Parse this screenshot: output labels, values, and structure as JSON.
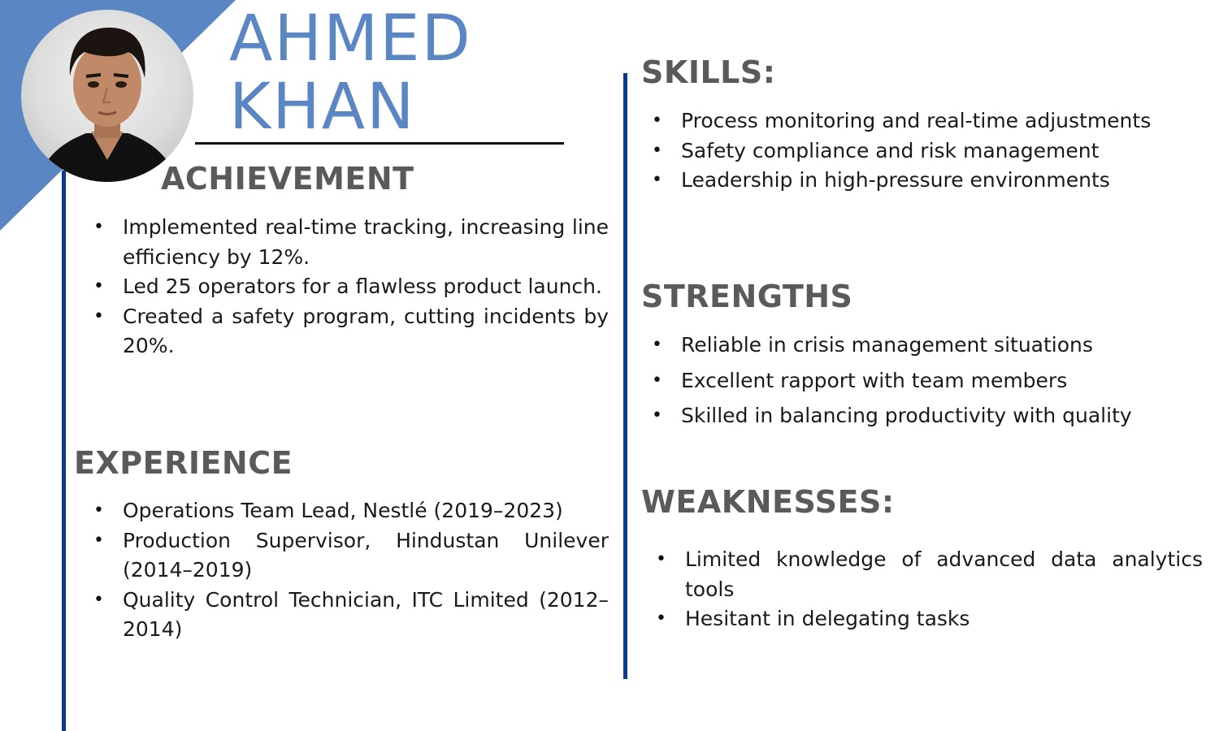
{
  "profile": {
    "first_name": "AHMED",
    "last_name": "KHAN"
  },
  "colors": {
    "accent": "#5b86c4",
    "divider": "#0b3a8c",
    "heading": "#5a5a5a"
  },
  "achievement": {
    "title": "ACHIEVEMENT",
    "items": [
      "Implemented real-time tracking, increasing line efficiency by 12%.",
      "Led 25 operators for a flawless product launch.",
      "Created a safety program, cutting incidents by 20%."
    ]
  },
  "experience": {
    "title": "EXPERIENCE",
    "items": [
      "Operations Team Lead, Nestlé (2019–2023)",
      "Production Supervisor, Hindustan Unilever (2014–2019)",
      "Quality Control Technician, ITC Limited (2012–2014)"
    ]
  },
  "skills": {
    "title": "SKILLS:",
    "items": [
      "Process monitoring and real-time adjustments",
      "Safety compliance and risk management",
      "Leadership in high-pressure environments"
    ]
  },
  "strengths": {
    "title": "STRENGTHS",
    "items": [
      "Reliable in crisis management situations",
      "Excellent rapport with team members",
      "Skilled in balancing productivity with quality"
    ]
  },
  "weaknesses": {
    "title": "WEAKNESSES:",
    "items": [
      "Limited knowledge of advanced data analytics tools",
      "Hesitant in delegating tasks"
    ]
  }
}
